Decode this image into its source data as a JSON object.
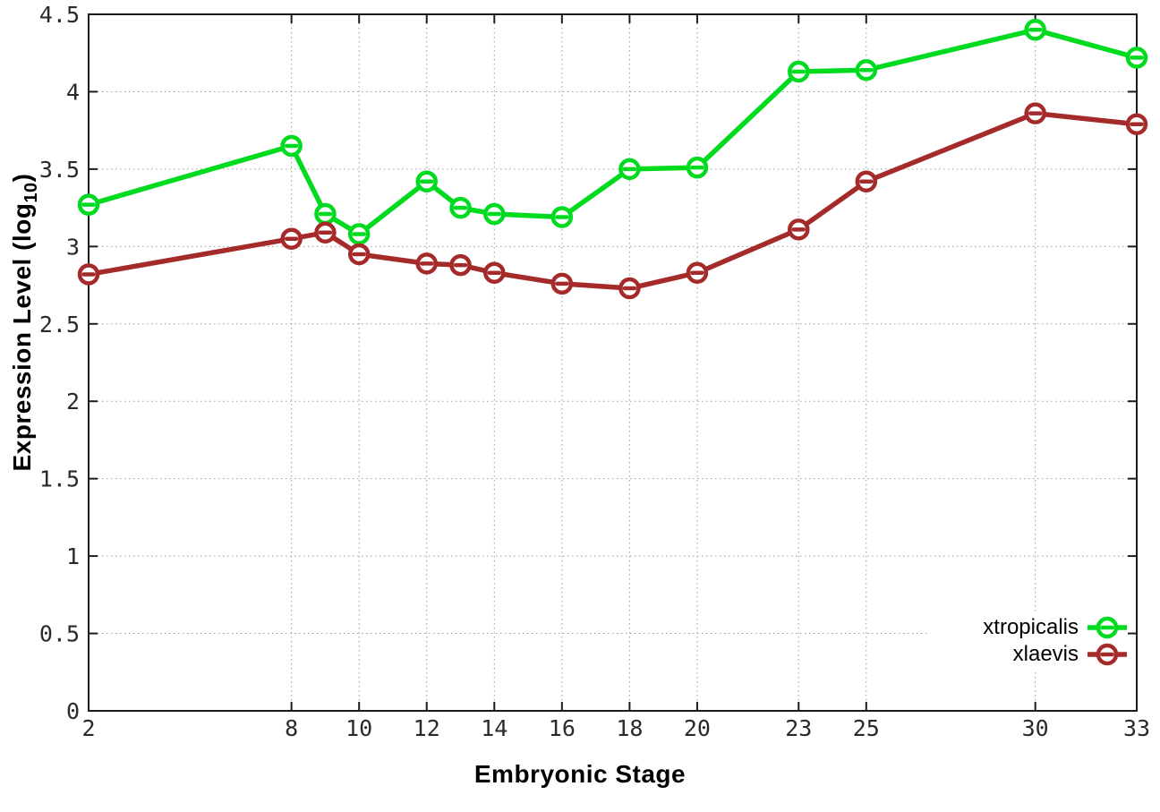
{
  "chart_data": {
    "type": "line",
    "title": "",
    "xlabel": "Embryonic Stage",
    "ylabel": {
      "pre": "Expression Level (log",
      "sub": "10",
      "post": ")"
    },
    "xlim": [
      2,
      33
    ],
    "ylim": [
      0,
      4.5
    ],
    "y_tick_step": 0.5,
    "x_ticks": [
      2,
      8,
      10,
      12,
      14,
      16,
      18,
      20,
      23,
      25,
      30,
      33
    ],
    "grid": true,
    "legend_position": "inside-bottom-right",
    "marker": "open-circle",
    "x": [
      2,
      8,
      9,
      10,
      12,
      13,
      14,
      16,
      18,
      20,
      23,
      25,
      30,
      33
    ],
    "series": [
      {
        "name": "xtropicalis",
        "color": "#00db20",
        "values": [
          3.27,
          3.65,
          3.21,
          3.08,
          3.42,
          3.25,
          3.21,
          3.19,
          3.5,
          3.51,
          4.13,
          4.14,
          4.4,
          4.22
        ]
      },
      {
        "name": "xlaevis",
        "color": "#a52a2a",
        "values": [
          2.82,
          3.05,
          3.09,
          2.95,
          2.89,
          2.88,
          2.83,
          2.76,
          2.73,
          2.83,
          3.11,
          3.42,
          3.86,
          3.79
        ]
      }
    ]
  },
  "style": {
    "background": "#ffffff",
    "grid_color": "#9c9c9c",
    "axis_color": "#1c1c1c",
    "tick_label_color": "#2a2a2a",
    "line_width": 5.5,
    "marker_radius": 10,
    "marker_stroke": 4.5
  }
}
